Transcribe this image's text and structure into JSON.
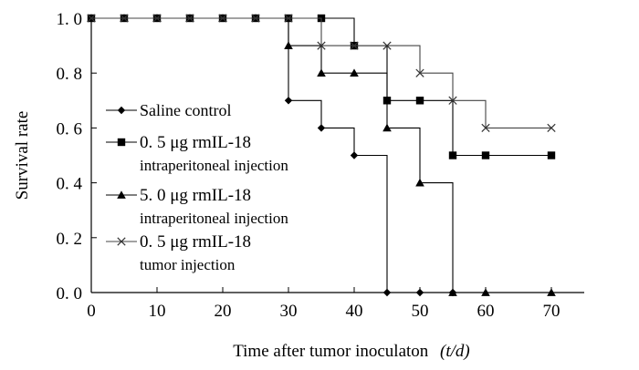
{
  "chart_data": {
    "type": "line",
    "step": true,
    "xlabel": "Time after tumor inoculaton",
    "xlabel_unit": "(t/d)",
    "ylabel": "Survival rate",
    "xlim": [
      0,
      75
    ],
    "ylim": [
      0,
      1
    ],
    "x_ticks": [
      0,
      10,
      20,
      30,
      40,
      50,
      60,
      70
    ],
    "x_tick_labels": [
      "0",
      "10",
      "20",
      "30",
      "40",
      "50",
      "60",
      "70"
    ],
    "y_ticks": [
      0,
      0.2,
      0.4,
      0.6,
      0.8,
      1.0
    ],
    "y_tick_labels": [
      "0. 0",
      "0. 2",
      "0. 4",
      "0. 6",
      "0. 8",
      "1. 0"
    ],
    "grid": false,
    "legend_position": "left-center",
    "series": [
      {
        "name": "Saline control",
        "legend_lines": [
          "Saline control"
        ],
        "marker": "diamond",
        "color": "#000000",
        "x": [
          0,
          5,
          10,
          15,
          20,
          25,
          30,
          35,
          40,
          45,
          50,
          55
        ],
        "y": [
          1.0,
          1.0,
          1.0,
          1.0,
          1.0,
          1.0,
          0.7,
          0.6,
          0.5,
          0.0,
          0.0,
          0.0
        ]
      },
      {
        "name": "0. 5 μg rmIL-18 intraperitoneal injection",
        "legend_lines": [
          "0. 5 μg  rmIL-18",
          "intraperitoneal injection"
        ],
        "marker": "square",
        "color": "#000000",
        "x": [
          0,
          5,
          10,
          15,
          20,
          25,
          30,
          35,
          40,
          45,
          50,
          55,
          60,
          70
        ],
        "y": [
          1.0,
          1.0,
          1.0,
          1.0,
          1.0,
          1.0,
          1.0,
          1.0,
          0.9,
          0.7,
          0.7,
          0.5,
          0.5,
          0.5
        ]
      },
      {
        "name": "5. 0 μg rmIL-18 intraperitoneal injection",
        "legend_lines": [
          "5. 0 μg  rmIL-18",
          "intraperitoneal injection"
        ],
        "marker": "triangle",
        "color": "#000000",
        "x": [
          0,
          5,
          10,
          15,
          20,
          25,
          30,
          35,
          40,
          45,
          50,
          55,
          60,
          70
        ],
        "y": [
          1.0,
          1.0,
          1.0,
          1.0,
          1.0,
          1.0,
          0.9,
          0.8,
          0.8,
          0.6,
          0.4,
          0.0,
          0.0,
          0.0
        ]
      },
      {
        "name": "0. 5 μg rmIL-18 tumor injection",
        "legend_lines": [
          "0. 5 μg  rmIL-18",
          "tumor injection"
        ],
        "marker": "x",
        "color": "#000000",
        "x": [
          0,
          5,
          10,
          15,
          20,
          25,
          30,
          35,
          40,
          45,
          50,
          55,
          60,
          70
        ],
        "y": [
          1.0,
          1.0,
          1.0,
          1.0,
          1.0,
          1.0,
          1.0,
          0.9,
          0.9,
          0.9,
          0.8,
          0.7,
          0.6,
          0.6
        ]
      }
    ]
  }
}
